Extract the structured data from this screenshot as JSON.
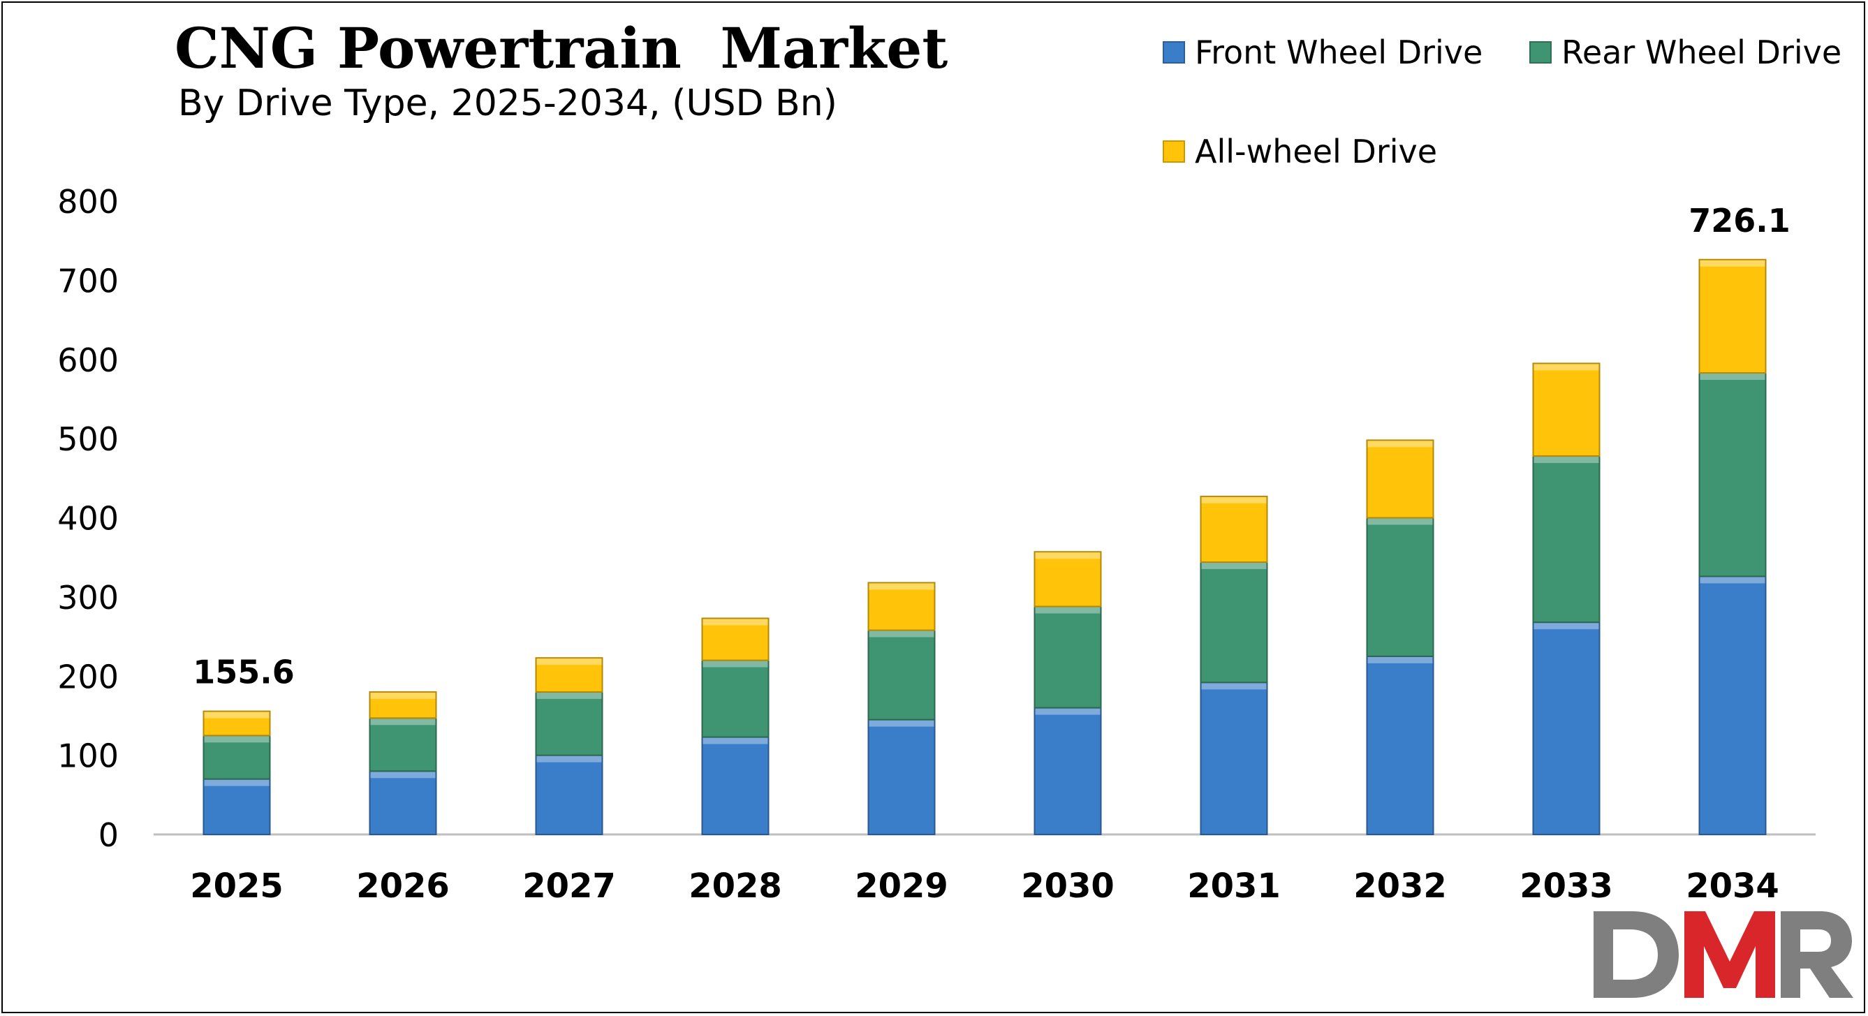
{
  "chart_data": {
    "type": "bar",
    "stacked": true,
    "title": "CNG Powertrain  Market",
    "subtitle": "By Drive Type, 2025-2034, (USD Bn)",
    "xlabel": "",
    "ylabel": "",
    "ylim": [
      0,
      800
    ],
    "yticks": [
      "0",
      "100",
      "200",
      "300",
      "400",
      "500",
      "600",
      "700",
      "800"
    ],
    "ytick_values": [
      0,
      100,
      200,
      300,
      400,
      500,
      600,
      700,
      800
    ],
    "categories": [
      "2025",
      "2026",
      "2027",
      "2028",
      "2029",
      "2030",
      "2031",
      "2032",
      "2033",
      "2034"
    ],
    "series": [
      {
        "name": "Front Wheel Drive",
        "color": "#3A7DC9",
        "values": [
          70,
          80,
          100,
          123,
          145,
          160,
          192,
          225,
          268,
          326
        ]
      },
      {
        "name": "Rear Wheel Drive",
        "color": "#3F9472",
        "values": [
          55,
          67,
          80,
          97,
          113,
          128,
          152,
          175,
          210,
          257
        ]
      },
      {
        "name": "All-wheel Drive",
        "color": "#FFC40A",
        "values": [
          30.6,
          33,
          43,
          53,
          60,
          69,
          83,
          98,
          117,
          143.1
        ]
      }
    ],
    "data_labels": [
      {
        "category": "2025",
        "text": "155.6"
      },
      {
        "category": "2034",
        "text": "726.1"
      }
    ],
    "legend_position": "top-right",
    "grid": false
  },
  "logo": {
    "text": "DMR",
    "colors": [
      "#7F7F7F",
      "#D9262B",
      "#7F7F7F"
    ]
  }
}
